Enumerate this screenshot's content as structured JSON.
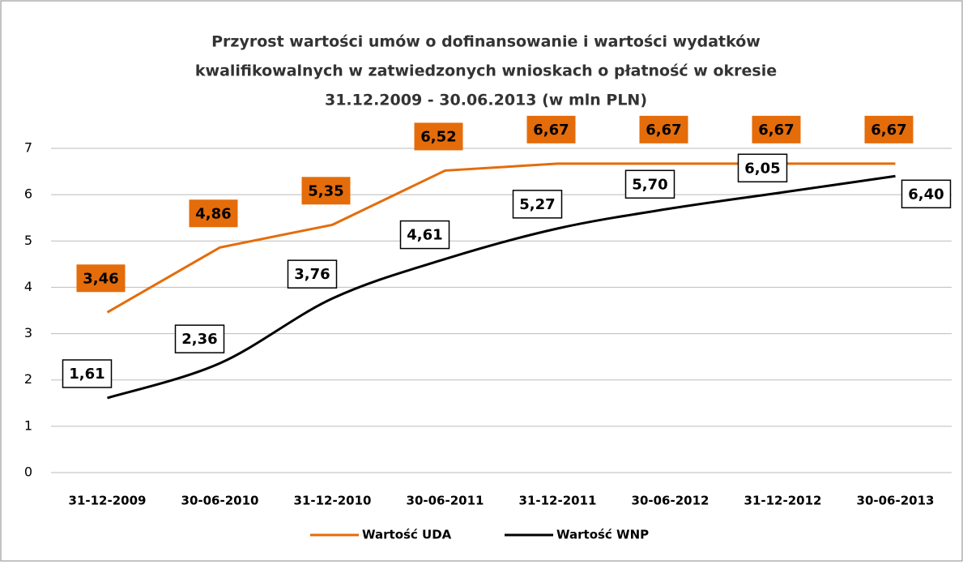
{
  "chart_data": {
    "type": "line",
    "title": [
      "Przyrost wartości umów o dofinansowanie  i wartości wydatków",
      "kwalifikowalnych w zatwiedzonych wnioskach o płatność w okresie",
      "31.12.2009 - 30.06.2013 (w mln PLN)"
    ],
    "categories": [
      "31-12-2009",
      "30-06-2010",
      "31-12-2010",
      "30-06-2011",
      "31-12-2011",
      "30-06-2012",
      "31-12-2012",
      "30-06-2013"
    ],
    "series": [
      {
        "name": "Wartość UDA",
        "color": "#e46c0a",
        "values": [
          3.46,
          4.86,
          5.35,
          6.52,
          6.67,
          6.67,
          6.67,
          6.67
        ],
        "value_labels": [
          "3,46",
          "4,86",
          "5,35",
          "6,52",
          "6,67",
          "6,67",
          "6,67",
          "6,67"
        ]
      },
      {
        "name": "Wartość WNP",
        "color": "#000000",
        "values": [
          1.61,
          2.36,
          3.76,
          4.61,
          5.27,
          5.7,
          6.05,
          6.4
        ],
        "value_labels": [
          "1,61",
          "2,36",
          "3,76",
          "4,61",
          "5,27",
          "5,70",
          "6,05",
          "6,40"
        ]
      }
    ],
    "ylim": [
      0,
      7
    ],
    "yticks": [
      0,
      1,
      2,
      3,
      4,
      5,
      6,
      7
    ],
    "grid": true,
    "legend": "bottom"
  }
}
